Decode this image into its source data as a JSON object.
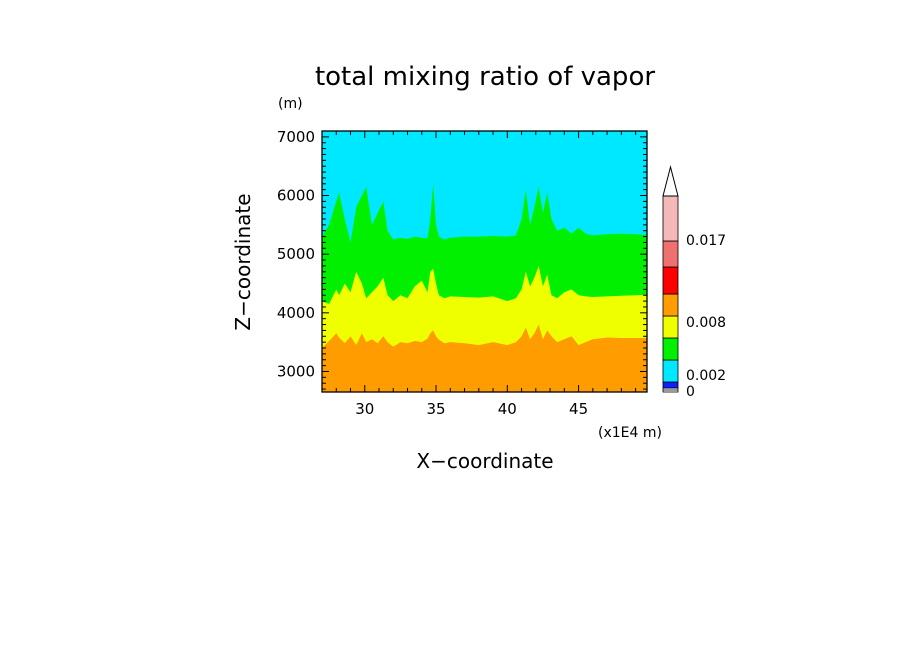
{
  "chart_data": {
    "type": "contour",
    "title": "total mixing ratio of vapor",
    "xlabel": "X−coordinate",
    "ylabel": "Z−coordinate",
    "x_unit": "(x1E4 m)",
    "y_unit": "(m)",
    "xlim": [
      27,
      49.8
    ],
    "ylim": [
      2650,
      7100
    ],
    "x_ticks": [
      "30",
      "35",
      "40",
      "45"
    ],
    "x_tick_values": [
      30,
      35,
      40,
      45
    ],
    "y_ticks": [
      "3000",
      "4000",
      "5000",
      "6000",
      "7000"
    ],
    "y_tick_values": [
      3000,
      4000,
      5000,
      6000,
      7000
    ],
    "colorbar": {
      "labels": [
        "0",
        "0.002",
        "0.008",
        "0.017"
      ],
      "colors": [
        "#ffffff",
        "#1020ff",
        "#00e8ff",
        "#00f000",
        "#f0ff00",
        "#ff9c00",
        "#ff0000",
        "#f07070",
        "#f5b8b8"
      ]
    },
    "bands": [
      {
        "color": "#ff9c00"
      },
      {
        "color": "#f0ff00"
      },
      {
        "color": "#00f000"
      },
      {
        "color": "#00e8ff"
      }
    ],
    "x": [
      27.0,
      27.5,
      28.0,
      28.2,
      28.6,
      29.0,
      29.4,
      29.8,
      30.1,
      30.5,
      30.9,
      31.3,
      31.6,
      32.0,
      32.5,
      33.0,
      33.5,
      34.0,
      34.4,
      34.6,
      34.8,
      35.0,
      35.2,
      35.6,
      36.0,
      37.0,
      38.0,
      39.0,
      40.0,
      40.6,
      41.0,
      41.3,
      41.6,
      41.9,
      42.2,
      42.5,
      42.8,
      43.1,
      43.5,
      44.0,
      44.5,
      45.0,
      45.5,
      46.0,
      47.0,
      48.0,
      49.0,
      49.8
    ],
    "contour_levels": [
      {
        "boundary": "orange-yellow",
        "z": [
          3400,
          3520,
          3650,
          3580,
          3480,
          3600,
          3450,
          3650,
          3500,
          3550,
          3480,
          3600,
          3500,
          3420,
          3500,
          3480,
          3520,
          3500,
          3560,
          3650,
          3700,
          3600,
          3540,
          3480,
          3500,
          3480,
          3450,
          3500,
          3450,
          3500,
          3600,
          3750,
          3550,
          3650,
          3800,
          3550,
          3700,
          3600,
          3500,
          3550,
          3600,
          3450,
          3500,
          3550,
          3580,
          3570,
          3570,
          3570
        ]
      },
      {
        "boundary": "yellow-green",
        "z": [
          4200,
          4150,
          4400,
          4300,
          4500,
          4350,
          4700,
          4500,
          4250,
          4350,
          4450,
          4600,
          4300,
          4200,
          4300,
          4250,
          4450,
          4550,
          4350,
          4700,
          4750,
          4500,
          4300,
          4250,
          4280,
          4270,
          4260,
          4280,
          4200,
          4250,
          4400,
          4700,
          4450,
          4600,
          4800,
          4450,
          4650,
          4300,
          4250,
          4350,
          4400,
          4300,
          4280,
          4270,
          4280,
          4290,
          4300,
          4310
        ]
      },
      {
        "boundary": "green-cyan",
        "z": [
          5300,
          5500,
          5900,
          6050,
          5600,
          5200,
          5800,
          6000,
          6150,
          5500,
          5700,
          5900,
          5400,
          5250,
          5280,
          5260,
          5300,
          5280,
          5270,
          5600,
          6200,
          5500,
          5300,
          5250,
          5280,
          5300,
          5300,
          5310,
          5300,
          5320,
          5600,
          6100,
          5500,
          5800,
          6150,
          5700,
          6050,
          5600,
          5400,
          5450,
          5350,
          5450,
          5350,
          5320,
          5340,
          5350,
          5340,
          5330
        ]
      }
    ]
  }
}
